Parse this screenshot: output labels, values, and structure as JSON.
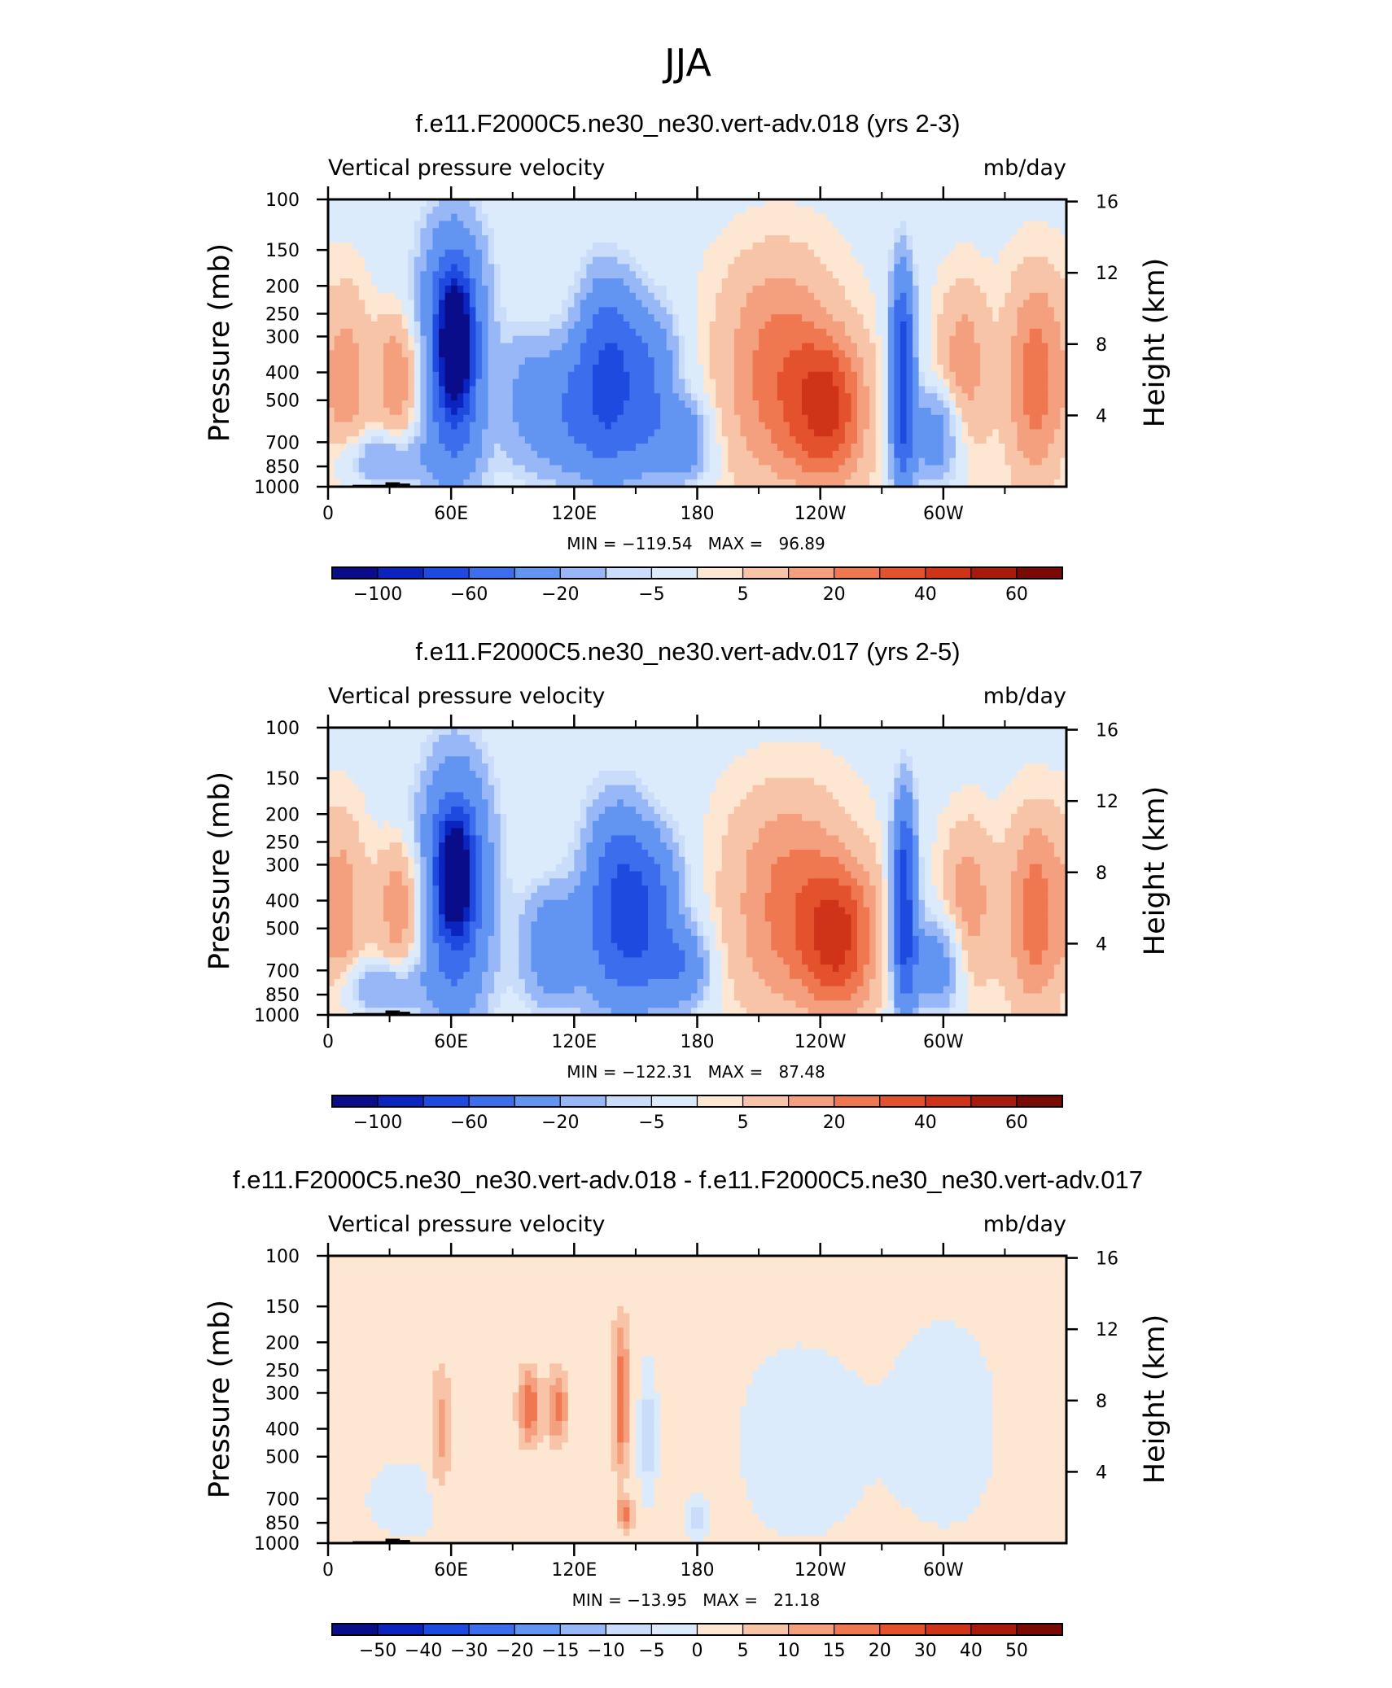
{
  "figure": {
    "title": "JJA"
  },
  "chart_data": [
    {
      "type": "heatmap",
      "title": "f.e11.F2000C5.ne30_ne30.vert-adv.018 (yrs 2-3)",
      "left_label": "Vertical pressure velocity",
      "units": "mb/day",
      "ylabel": "Pressure (mb)",
      "ylabel_right": "Height (km)",
      "x_ticks": [
        "0",
        "60E",
        "120E",
        "180",
        "120W",
        "60W"
      ],
      "x_tick_values": [
        0,
        60,
        120,
        180,
        240,
        300
      ],
      "xlim": [
        0,
        360
      ],
      "y_ticks": [
        "100",
        "150",
        "200",
        "250",
        "300",
        "400",
        "500",
        "700",
        "850",
        "1000"
      ],
      "y_tick_values": [
        100,
        150,
        200,
        250,
        300,
        400,
        500,
        700,
        850,
        1000
      ],
      "ylim": [
        1000,
        100
      ],
      "y2_ticks": [
        "4",
        "8",
        "12",
        "16"
      ],
      "y2_tick_values": [
        4,
        8,
        12,
        16
      ],
      "stats_text": "MIN = −119.54   MAX =   96.89",
      "min": -119.54,
      "max": 96.89,
      "colorbar": {
        "levels": [
          -100,
          -80,
          -60,
          -40,
          -20,
          -10,
          -5,
          5,
          10,
          20,
          30,
          40,
          50,
          60
        ],
        "labels": [
          "−100",
          "−60",
          "−20",
          "−5",
          "5",
          "20",
          "40",
          "60"
        ],
        "label_slots": [
          1,
          3,
          5,
          7,
          9,
          11,
          13,
          15
        ]
      },
      "features": [
        {
          "lon": 10,
          "lon_w": 10,
          "p_top": 200,
          "p_bot": 920,
          "value": 20
        },
        {
          "lon": 35,
          "lon_w": 12,
          "p_top": 250,
          "p_bot": 700,
          "value": 28
        },
        {
          "lon": 25,
          "lon_w": 20,
          "p_top": 650,
          "p_bot": 990,
          "value": -25
        },
        {
          "lon": 61,
          "lon_w": 16,
          "p_top": 120,
          "p_bot": 990,
          "value": -70
        },
        {
          "lon": 62,
          "lon_w": 7,
          "p_top": 200,
          "p_bot": 500,
          "value": -105
        },
        {
          "lon": 95,
          "lon_w": 12,
          "p_top": 280,
          "p_bot": 900,
          "value": -20
        },
        {
          "lon": 115,
          "lon_w": 16,
          "p_top": 300,
          "p_bot": 960,
          "value": -35
        },
        {
          "lon": 135,
          "lon_w": 14,
          "p_top": 180,
          "p_bot": 960,
          "value": -55
        },
        {
          "lon": 155,
          "lon_w": 16,
          "p_top": 230,
          "p_bot": 940,
          "value": -45
        },
        {
          "lon": 175,
          "lon_w": 12,
          "p_top": 500,
          "p_bot": 960,
          "value": -30
        },
        {
          "lon": 220,
          "lon_w": 28,
          "p_top": 160,
          "p_bot": 990,
          "value": 32
        },
        {
          "lon": 245,
          "lon_w": 18,
          "p_top": 300,
          "p_bot": 990,
          "value": 38
        },
        {
          "lon": 280,
          "lon_w": 6,
          "p_top": 170,
          "p_bot": 995,
          "value": -75
        },
        {
          "lon": 298,
          "lon_w": 14,
          "p_top": 450,
          "p_bot": 980,
          "value": -35
        },
        {
          "lon": 310,
          "lon_w": 12,
          "p_top": 200,
          "p_bot": 900,
          "value": 25
        },
        {
          "lon": 345,
          "lon_w": 14,
          "p_top": 180,
          "p_bot": 990,
          "value": 32
        }
      ]
    },
    {
      "type": "heatmap",
      "title": "f.e11.F2000C5.ne30_ne30.vert-adv.017 (yrs 2-5)",
      "left_label": "Vertical pressure velocity",
      "units": "mb/day",
      "ylabel": "Pressure (mb)",
      "ylabel_right": "Height (km)",
      "x_ticks": [
        "0",
        "60E",
        "120E",
        "180",
        "120W",
        "60W"
      ],
      "x_tick_values": [
        0,
        60,
        120,
        180,
        240,
        300
      ],
      "xlim": [
        0,
        360
      ],
      "y_ticks": [
        "100",
        "150",
        "200",
        "250",
        "300",
        "400",
        "500",
        "700",
        "850",
        "1000"
      ],
      "y_tick_values": [
        100,
        150,
        200,
        250,
        300,
        400,
        500,
        700,
        850,
        1000
      ],
      "ylim": [
        1000,
        100
      ],
      "y2_ticks": [
        "4",
        "8",
        "12",
        "16"
      ],
      "y2_tick_values": [
        4,
        8,
        12,
        16
      ],
      "stats_text": "MIN = −122.31   MAX =   87.48",
      "min": -122.31,
      "max": 87.48,
      "colorbar": {
        "levels": [
          -100,
          -80,
          -60,
          -40,
          -20,
          -10,
          -5,
          5,
          10,
          20,
          30,
          40,
          50,
          60
        ],
        "labels": [
          "−100",
          "−60",
          "−20",
          "−5",
          "5",
          "20",
          "40",
          "60"
        ],
        "label_slots": [
          1,
          3,
          5,
          7,
          9,
          11,
          13,
          15
        ]
      },
      "features": [
        {
          "lon": 8,
          "lon_w": 10,
          "p_top": 200,
          "p_bot": 940,
          "value": 20
        },
        {
          "lon": 36,
          "lon_w": 12,
          "p_top": 250,
          "p_bot": 700,
          "value": 28
        },
        {
          "lon": 25,
          "lon_w": 20,
          "p_top": 650,
          "p_bot": 990,
          "value": -25
        },
        {
          "lon": 62,
          "lon_w": 17,
          "p_top": 130,
          "p_bot": 990,
          "value": -70
        },
        {
          "lon": 62,
          "lon_w": 7,
          "p_top": 220,
          "p_bot": 480,
          "value": -105
        },
        {
          "lon": 110,
          "lon_w": 16,
          "p_top": 350,
          "p_bot": 960,
          "value": -35
        },
        {
          "lon": 140,
          "lon_w": 16,
          "p_top": 180,
          "p_bot": 960,
          "value": -55
        },
        {
          "lon": 158,
          "lon_w": 16,
          "p_top": 230,
          "p_bot": 940,
          "value": -45
        },
        {
          "lon": 175,
          "lon_w": 12,
          "p_top": 500,
          "p_bot": 960,
          "value": -30
        },
        {
          "lon": 225,
          "lon_w": 30,
          "p_top": 170,
          "p_bot": 990,
          "value": 30
        },
        {
          "lon": 250,
          "lon_w": 18,
          "p_top": 300,
          "p_bot": 990,
          "value": 38
        },
        {
          "lon": 281,
          "lon_w": 6,
          "p_top": 170,
          "p_bot": 995,
          "value": -75
        },
        {
          "lon": 298,
          "lon_w": 14,
          "p_top": 450,
          "p_bot": 980,
          "value": -35
        },
        {
          "lon": 312,
          "lon_w": 12,
          "p_top": 220,
          "p_bot": 900,
          "value": 25
        },
        {
          "lon": 345,
          "lon_w": 14,
          "p_top": 200,
          "p_bot": 990,
          "value": 32
        }
      ]
    },
    {
      "type": "heatmap",
      "title": "f.e11.F2000C5.ne30_ne30.vert-adv.018 - f.e11.F2000C5.ne30_ne30.vert-adv.017",
      "left_label": "Vertical pressure velocity",
      "units": "mb/day",
      "ylabel": "Pressure (mb)",
      "ylabel_right": "Height (km)",
      "x_ticks": [
        "0",
        "60E",
        "120E",
        "180",
        "120W",
        "60W"
      ],
      "x_tick_values": [
        0,
        60,
        120,
        180,
        240,
        300
      ],
      "xlim": [
        0,
        360
      ],
      "y_ticks": [
        "100",
        "150",
        "200",
        "250",
        "300",
        "400",
        "500",
        "700",
        "850",
        "1000"
      ],
      "y_tick_values": [
        100,
        150,
        200,
        250,
        300,
        400,
        500,
        700,
        850,
        1000
      ],
      "ylim": [
        1000,
        100
      ],
      "y2_ticks": [
        "4",
        "8",
        "12",
        "16"
      ],
      "y2_tick_values": [
        4,
        8,
        12,
        16
      ],
      "stats_text": "MIN = −13.95   MAX =   21.18",
      "min": -13.95,
      "max": 21.18,
      "colorbar": {
        "levels": [
          -50,
          -40,
          -30,
          -20,
          -15,
          -10,
          -5,
          0,
          5,
          10,
          15,
          20,
          30,
          40,
          50
        ],
        "labels": [
          "−50",
          "−40",
          "−30",
          "−20",
          "−15",
          "−10",
          "−5",
          "0",
          "5",
          "10",
          "15",
          "20",
          "30",
          "40",
          "50"
        ],
        "label_slots": [
          1,
          2,
          3,
          4,
          5,
          6,
          7,
          8,
          9,
          10,
          11,
          12,
          13,
          14,
          15
        ]
      },
      "features": [
        {
          "lon": 55,
          "lon_w": 5,
          "p_top": 250,
          "p_bot": 700,
          "value": 10
        },
        {
          "lon": 98,
          "lon_w": 5,
          "p_top": 250,
          "p_bot": 450,
          "value": 18
        },
        {
          "lon": 112,
          "lon_w": 5,
          "p_top": 250,
          "p_bot": 450,
          "value": 15
        },
        {
          "lon": 143,
          "lon_w": 4,
          "p_top": 170,
          "p_bot": 560,
          "value": 17
        },
        {
          "lon": 145,
          "lon_w": 4,
          "p_top": 700,
          "p_bot": 900,
          "value": 15
        },
        {
          "lon": 156,
          "lon_w": 4,
          "p_top": 250,
          "p_bot": 700,
          "value": -10
        },
        {
          "lon": 180,
          "lon_w": 5,
          "p_top": 700,
          "p_bot": 960,
          "value": -10
        },
        {
          "lon": 230,
          "lon_w": 30,
          "p_top": 200,
          "p_bot": 990,
          "value": -5
        },
        {
          "lon": 300,
          "lon_w": 30,
          "p_top": 150,
          "p_bot": 990,
          "value": -4
        },
        {
          "lon": 40,
          "lon_w": 25,
          "p_top": 500,
          "p_bot": 990,
          "value": -4
        }
      ]
    }
  ],
  "colors": {
    "wind_scale": [
      "#0a0d8a",
      "#0b24bf",
      "#1f4ae0",
      "#3b6ded",
      "#6294f2",
      "#97b7f6",
      "#c9dcfa",
      "#dcebfc",
      "#fde6d2",
      "#f8c4a8",
      "#f4a07e",
      "#f07851",
      "#e4522d",
      "#cf3318",
      "#a81a0b",
      "#7a0a04"
    ],
    "diff_scale": [
      "#0a0d8a",
      "#0b24bf",
      "#1f4ae0",
      "#3b6ded",
      "#6294f2",
      "#97b7f6",
      "#c9dcfa",
      "#dcebfc",
      "#fde6d2",
      "#f8c4a8",
      "#f4a07e",
      "#f07851",
      "#e4522d",
      "#cf3318",
      "#a81a0b",
      "#7a0a04"
    ],
    "topography": "#000000"
  }
}
